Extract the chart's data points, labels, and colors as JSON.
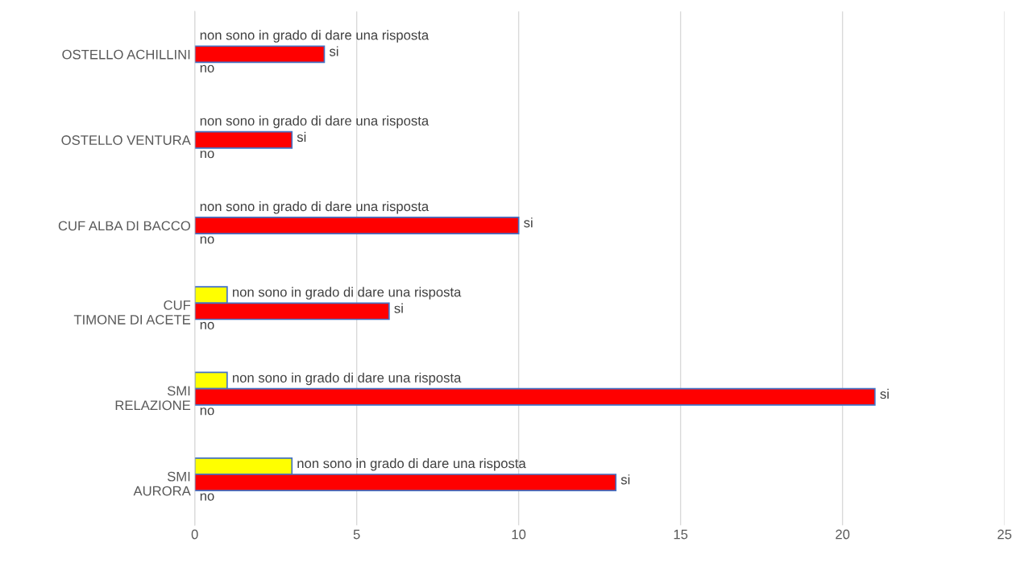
{
  "chart_data": {
    "type": "bar",
    "orientation": "horizontal",
    "categories": [
      "OSTELLO ACHILLINI",
      "OSTELLO VENTURA",
      "CUF ALBA DI BACCO",
      "CUF\nTIMONE DI ACETE",
      "SMI\nRELAZIONE",
      "SMI\nAURORA"
    ],
    "series": [
      {
        "name": "non sono in grado di dare una risposta",
        "color": "#ffff00",
        "values": [
          0,
          0,
          0,
          1,
          1,
          3
        ]
      },
      {
        "name": "si",
        "color": "#ff0000",
        "values": [
          4,
          3,
          10,
          6,
          21,
          13
        ]
      },
      {
        "name": "no",
        "values": [
          0,
          0,
          0,
          0,
          0,
          0
        ]
      }
    ],
    "xlim": [
      0,
      25
    ],
    "xticks": [
      0,
      5,
      10,
      15,
      20,
      25
    ],
    "grid": "x",
    "legend": false
  }
}
